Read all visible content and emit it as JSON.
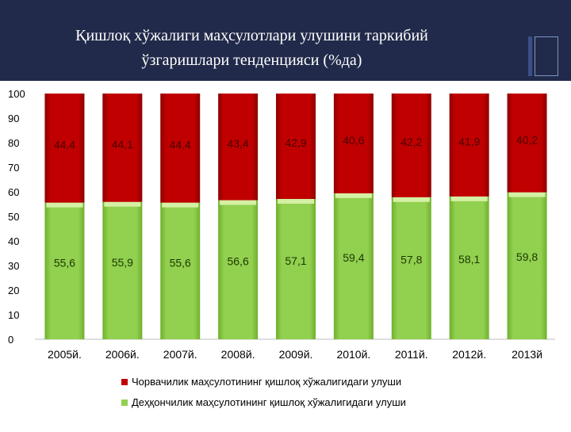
{
  "slide": {
    "title_line1": "Қишлоқ хўжалиги маҳсулотлари улушини таркибий",
    "title_line2": "ўзгаришлари тенденцияси (%да)"
  },
  "colors": {
    "header_bg": "#212a4a",
    "livestock_red": "#c00000",
    "crops_green": "#92d050"
  },
  "chart_data": {
    "type": "bar",
    "stacked": true,
    "categories": [
      "2005й.",
      "2006й.",
      "2007й.",
      "2008й.",
      "2009й.",
      "2010й.",
      "2011й.",
      "2012й.",
      "2013й"
    ],
    "series": [
      {
        "name": "Деҳқончилик маҳсулотининг қишлоқ хўжалигидаги улуши",
        "color": "#92d050",
        "values": [
          55.6,
          55.9,
          55.6,
          56.6,
          57.1,
          59.4,
          57.8,
          58.1,
          59.8
        ],
        "labels": [
          "55,6",
          "55,9",
          "55,6",
          "56,6",
          "57,1",
          "59,4",
          "57,8",
          "58,1",
          "59,8"
        ]
      },
      {
        "name": "Чорвачилик маҳсулотининг қишлоқ хўжалигидаги улуши",
        "color": "#c00000",
        "values": [
          44.4,
          44.1,
          44.4,
          43.4,
          42.9,
          40.6,
          42.2,
          41.9,
          40.2
        ],
        "labels": [
          "44,4",
          "44,1",
          "44,4",
          "43,4",
          "42,9",
          "40,6",
          "42,2",
          "41,9",
          "40,2"
        ]
      }
    ],
    "yticks": [
      0,
      10,
      20,
      30,
      40,
      50,
      60,
      70,
      80,
      90,
      100
    ],
    "ylim": [
      0,
      100
    ],
    "legend": "bottom",
    "grid": false
  }
}
